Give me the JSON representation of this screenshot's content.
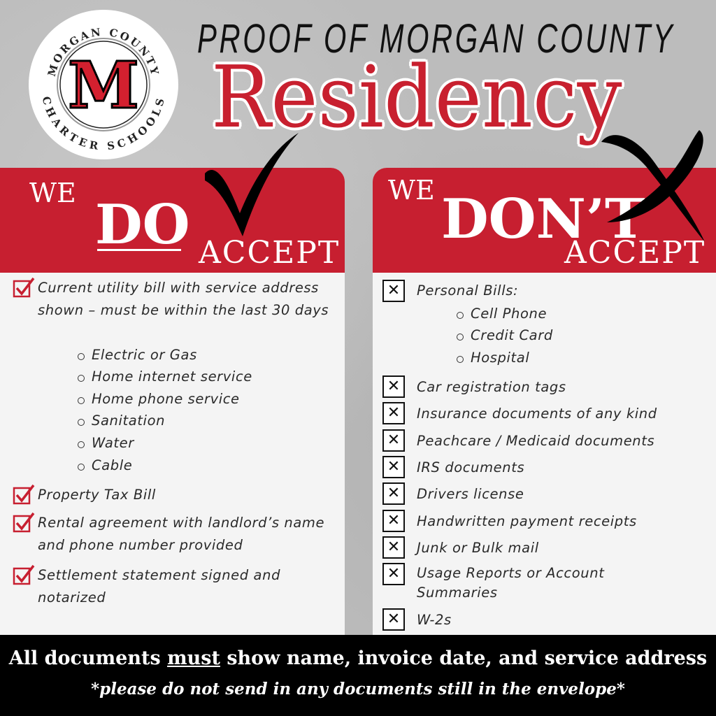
{
  "logo": {
    "top_text": "MORGAN COUNTY",
    "bottom_text": "CHARTER SCHOOLS",
    "letter": "M"
  },
  "header": {
    "line1": "PROOF OF MORGAN COUNTY",
    "title": "Residency"
  },
  "do": {
    "we": "WE",
    "word": "DO",
    "accept": "ACCEPT",
    "items": [
      {
        "text": "Current utility bill with service address shown – must be within the last 30 days",
        "subs": [
          "Electric or Gas",
          "Home internet service",
          "Home phone service",
          "Sanitation",
          "Water",
          "Cable"
        ]
      },
      {
        "text": "Property Tax Bill"
      },
      {
        "text": "Rental agreement with landlord’s name and phone number provided"
      },
      {
        "text": "Settlement statement signed and notarized"
      }
    ]
  },
  "dont": {
    "we": "WE",
    "word": "DON’T",
    "accept": "ACCEPT",
    "items": [
      {
        "text": "Personal Bills:",
        "subs": [
          "Cell Phone",
          "Credit Card",
          "Hospital"
        ]
      },
      {
        "text": "Car registration tags"
      },
      {
        "text": "Insurance documents of any kind"
      },
      {
        "text": "Peachcare / Medicaid documents"
      },
      {
        "text": "IRS documents"
      },
      {
        "text": "Drivers license"
      },
      {
        "text": "Handwritten payment receipts"
      },
      {
        "text": "Junk or Bulk mail"
      },
      {
        "text": "Usage Reports or Account Summaries"
      },
      {
        "text": "W-2s"
      }
    ]
  },
  "footer": {
    "pre": "All documents ",
    "must": "must",
    "post": " show name, invoice date, and service address",
    "note": "*please do not send in any documents still in the envelope*"
  },
  "colors": {
    "red": "#c71f30",
    "black": "#000000"
  }
}
